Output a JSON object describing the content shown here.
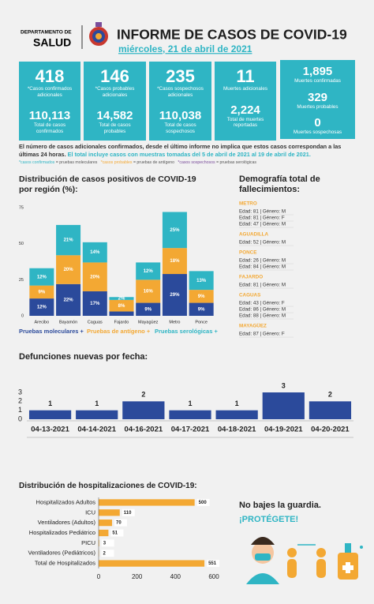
{
  "header": {
    "department": "DEPARTAMENTO DE",
    "agency": "SALUD",
    "title": "INFORME DE CASOS DE COVID-19",
    "date": "miércoles, 21 de abril de 2021"
  },
  "stats": [
    {
      "value": "418",
      "label": "*Casos confirmados adicionales",
      "total": "110,113",
      "total_label": "Total de casos confirmados"
    },
    {
      "value": "146",
      "label": "*Casos probables adicionales",
      "total": "14,582",
      "total_label": "Total de casos probables"
    },
    {
      "value": "235",
      "label": "*Casos sospechosos adicionales",
      "total": "110,038",
      "total_label": "Total de casos sospechosos"
    },
    {
      "value": "11",
      "label": "Muertes adicionales",
      "total": "2,224",
      "total_label": "Total de muertes reportadas"
    }
  ],
  "deaths_box": [
    {
      "value": "1,895",
      "label": "Muertes confirmadas"
    },
    {
      "value": "329",
      "label": "Muertes probables"
    },
    {
      "value": "0",
      "label": "Muertes sospechosas"
    }
  ],
  "note": {
    "text": "El número de casos adicionales confirmados, desde el último informe no implica que estos casos correspondan a las últimas 24 horas.",
    "highlight": "El total incluye casos con muestras tomadas del 5 de abril de 2021 al 19 de abril de 2021."
  },
  "definitions": [
    {
      "term": "*casos confirmados",
      "meaning": "= pruebas moleculares"
    },
    {
      "term": "*casos probables",
      "meaning": "= pruebas de antígeno"
    },
    {
      "term": "*casos sospechosos",
      "meaning": "= pruebas serológicas"
    }
  ],
  "chart_data": [
    {
      "type": "stacked_bar",
      "title": "Distribución de casos positivos de COVID-19 por región (%):",
      "categories": [
        "Arecibo",
        "Bayamón",
        "Caguas",
        "Fajardo",
        "Mayagüez",
        "Metro",
        "Ponce"
      ],
      "series": [
        {
          "name": "Pruebas moleculares +",
          "color": "#2b4a9b",
          "values": [
            12,
            22,
            17,
            3,
            9,
            29,
            9
          ],
          "value_labels": [
            "12%",
            "22%",
            "17%",
            null,
            "9%",
            "29%",
            "9%"
          ]
        },
        {
          "name": "Pruebas de antígeno +",
          "color": "#f3a833",
          "values": [
            9,
            20,
            20,
            8,
            16,
            18,
            9
          ],
          "value_labels": [
            "9%",
            "20%",
            "20%",
            "8%",
            "16%",
            "18%",
            "9%"
          ]
        },
        {
          "name": "Pruebas serológicas +",
          "color": "#2fb5c4",
          "values": [
            12,
            21,
            14,
            2,
            12,
            25,
            13
          ],
          "value_labels": [
            "12%",
            "21%",
            "14%",
            "2%",
            "12%",
            "25%",
            "13%"
          ]
        }
      ],
      "ylim": [
        0,
        75
      ],
      "yticks": [
        0,
        25,
        50,
        75
      ],
      "grid": false,
      "legend": "bottom"
    },
    {
      "type": "bar",
      "title": "Defunciones nuevas por fecha:",
      "categories": [
        "04-13-2021",
        "04-14-2021",
        "04-16-2021",
        "04-17-2021",
        "04-18-2021",
        "04-19-2021",
        "04-20-2021"
      ],
      "values": [
        1,
        1,
        2,
        1,
        1,
        3,
        2
      ],
      "color": "#2b4a9b",
      "ylim": [
        0,
        3
      ],
      "yticks": [
        0,
        1,
        2,
        3
      ],
      "grid": false
    },
    {
      "type": "horizontal_bar",
      "title": "Distribución de hospitalizaciones de COVID-19:",
      "categories": [
        "Hospitalizados Adultos",
        "ICU",
        "Ventiladores (Adultos)",
        "Hospitalizados Pediátrico",
        "PICU",
        "Ventiladores (Pediátricos)",
        "Total de Hospitalizados"
      ],
      "values": [
        500,
        110,
        70,
        51,
        3,
        2,
        551
      ],
      "color": "#f3a833",
      "xlim": [
        0,
        600
      ],
      "xticks": [
        0,
        200,
        400,
        600
      ],
      "grid": false
    }
  ],
  "demographics": {
    "title": "Demografía total de fallecimientos:",
    "regions": [
      {
        "name": "METRO",
        "cases": [
          "Edad: 81 | Género: M",
          "Edad: 81 | Género: F",
          "Edad: 47 | Género: M"
        ]
      },
      {
        "name": "AGUADILLA",
        "cases": [
          "Edad: 52 | Género: M"
        ]
      },
      {
        "name": "PONCE",
        "cases": [
          "Edad: 26 | Género: M",
          "Edad: 84 | Género: M"
        ]
      },
      {
        "name": "FAJARDO",
        "cases": [
          "Edad: 81 | Género: M"
        ]
      },
      {
        "name": "CAGUAS",
        "cases": [
          "Edad: 43 | Género: F",
          "Edad: 86 | Género: M",
          "Edad: 88 | Género: M"
        ]
      },
      {
        "name": "MAYAGÜEZ",
        "cases": [
          "Edad: 87 | Género: F"
        ]
      }
    ]
  },
  "footer": {
    "line1": "No bajes la guardia.",
    "line2": "¡PROTÉGETE!"
  }
}
